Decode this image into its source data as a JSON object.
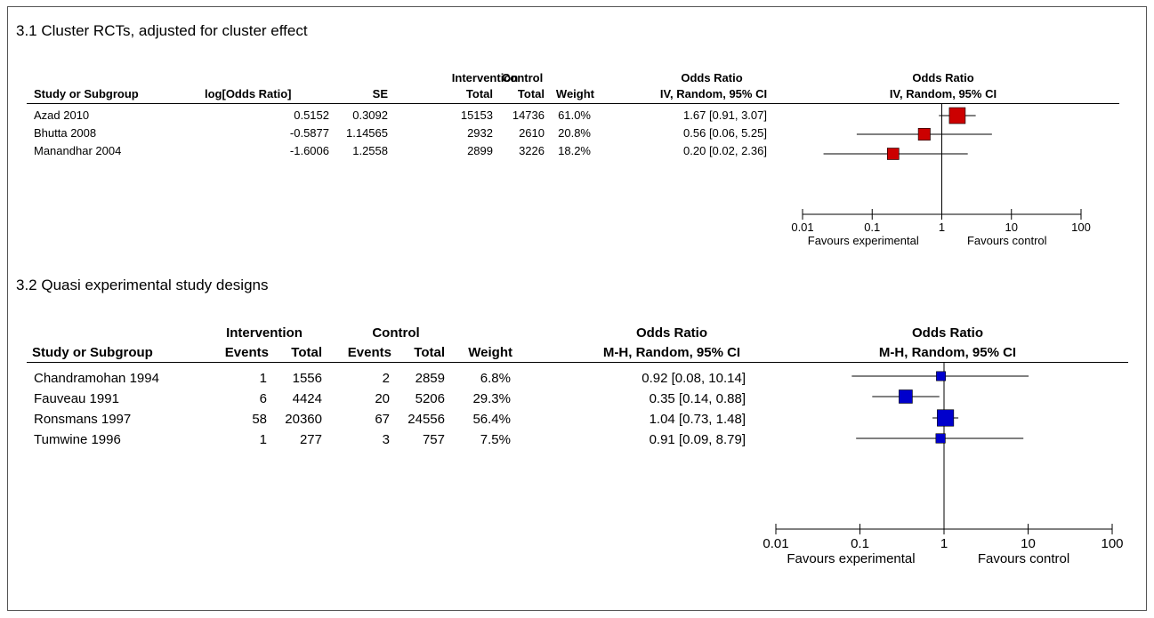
{
  "chart_data": [
    {
      "type": "forest",
      "title": "3.1 Cluster RCTs, adjusted for cluster effect",
      "columns": {
        "study": "Study or Subgroup",
        "log_or": "log[Odds Ratio]",
        "se": "SE",
        "intervention_group": "Intervention",
        "intervention_total": "Total",
        "control_group": "Control",
        "control_total": "Total",
        "weight": "Weight",
        "or_title": "Odds Ratio",
        "or_method": "IV, Random, 95% CI",
        "plot_title": "Odds Ratio",
        "plot_method": "IV, Random, 95% CI"
      },
      "rows": [
        {
          "study": "Azad 2010",
          "log_or": "0.5152",
          "se": "0.3092",
          "int_total": "15153",
          "ctrl_total": "14736",
          "weight": "61.0%",
          "ci_text": "1.67 [0.91, 3.07]",
          "or": 1.67,
          "lo": 0.91,
          "hi": 3.07,
          "w": 61.0
        },
        {
          "study": "Bhutta 2008",
          "log_or": "-0.5877",
          "se": "1.14565",
          "int_total": "2932",
          "ctrl_total": "2610",
          "weight": "20.8%",
          "ci_text": "0.56 [0.06, 5.25]",
          "or": 0.56,
          "lo": 0.06,
          "hi": 5.25,
          "w": 20.8
        },
        {
          "study": "Manandhar  2004",
          "log_or": "-1.6006",
          "se": "1.2558",
          "int_total": "2899",
          "ctrl_total": "3226",
          "weight": "18.2%",
          "ci_text": "0.20 [0.02, 2.36]",
          "or": 0.2,
          "lo": 0.02,
          "hi": 2.36,
          "w": 18.2
        }
      ],
      "axis": {
        "scale": "log",
        "ticks": [
          0.01,
          0.1,
          1,
          10,
          100
        ],
        "tick_labels": [
          "0.01",
          "0.1",
          "1",
          "10",
          "100"
        ],
        "left_label": "Favours experimental",
        "right_label": "Favours control"
      },
      "marker_color": "#cc0000"
    },
    {
      "type": "forest",
      "title": "3.2 Quasi experimental study designs",
      "columns": {
        "study": "Study or Subgroup",
        "intervention_group": "Intervention",
        "int_events": "Events",
        "int_total": "Total",
        "control_group": "Control",
        "ctrl_events": "Events",
        "ctrl_total": "Total",
        "weight": "Weight",
        "or_title": "Odds Ratio",
        "or_method": "M-H, Random, 95% CI",
        "plot_title": "Odds Ratio",
        "plot_method": "M-H, Random, 95% CI"
      },
      "rows": [
        {
          "study": "Chandramohan 1994",
          "int_events": "1",
          "int_total": "1556",
          "ctrl_events": "2",
          "ctrl_total": "2859",
          "weight": "6.8%",
          "ci_text": "0.92 [0.08, 10.14]",
          "or": 0.92,
          "lo": 0.08,
          "hi": 10.14,
          "w": 6.8
        },
        {
          "study": "Fauveau 1991",
          "int_events": "6",
          "int_total": "4424",
          "ctrl_events": "20",
          "ctrl_total": "5206",
          "weight": "29.3%",
          "ci_text": "0.35 [0.14, 0.88]",
          "or": 0.35,
          "lo": 0.14,
          "hi": 0.88,
          "w": 29.3
        },
        {
          "study": "Ronsmans 1997",
          "int_events": "58",
          "int_total": "20360",
          "ctrl_events": "67",
          "ctrl_total": "24556",
          "weight": "56.4%",
          "ci_text": "1.04 [0.73, 1.48]",
          "or": 1.04,
          "lo": 0.73,
          "hi": 1.48,
          "w": 56.4
        },
        {
          "study": "Tumwine 1996",
          "int_events": "1",
          "int_total": "277",
          "ctrl_events": "3",
          "ctrl_total": "757",
          "weight": "7.5%",
          "ci_text": "0.91 [0.09, 8.79]",
          "or": 0.91,
          "lo": 0.09,
          "hi": 8.79,
          "w": 7.5
        }
      ],
      "axis": {
        "scale": "log",
        "ticks": [
          0.01,
          0.1,
          1,
          10,
          100
        ],
        "tick_labels": [
          "0.01",
          "0.1",
          "1",
          "10",
          "100"
        ],
        "left_label": "Favours experimental",
        "right_label": "Favours control"
      },
      "marker_color": "#0000cc"
    }
  ]
}
